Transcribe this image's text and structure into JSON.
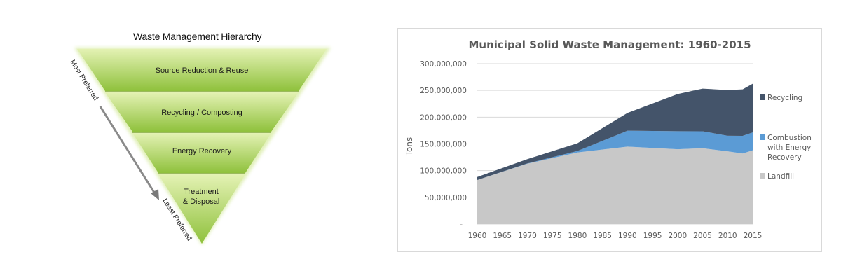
{
  "hierarchy": {
    "title": "Waste Management Hierarchy",
    "tiers": [
      "Source Reduction & Reuse",
      "Recycling / Composting",
      "Energy Recovery",
      "Treatment",
      "& Disposal"
    ],
    "most_preferred": "Most Preferred",
    "least_preferred": "Least Preferred",
    "colors": {
      "light": "#e4f2b4",
      "dark": "#8fc13c",
      "arrow": "#8a8a8a"
    }
  },
  "chart_data": {
    "type": "area",
    "stacked": true,
    "title": "Municipal Solid Waste Management: 1960-2015",
    "xlabel": "",
    "ylabel": "Tons",
    "x": [
      1960,
      1970,
      1980,
      1990,
      2000,
      2005,
      2010,
      2013,
      2015
    ],
    "xticks": [
      "1960",
      "1965",
      "1970",
      "1975",
      "1980",
      "1985",
      "1990",
      "1995",
      "2000",
      "2005",
      "2010",
      "2015"
    ],
    "yticks": [
      "-",
      "50,000,000",
      "100,000,000",
      "150,000,000",
      "200,000,000",
      "250,000,000",
      "300,000,000"
    ],
    "ylim": [
      0,
      300000000
    ],
    "grid": true,
    "legend_position": "right",
    "series": [
      {
        "name": "Landfill",
        "color": "#c8c8c8",
        "values": [
          82500000,
          113000000,
          134000000,
          145000000,
          140000000,
          142000000,
          136000000,
          132000000,
          138000000
        ]
      },
      {
        "name": "Combustion with Energy Recovery",
        "legend_lines": [
          "Combustion",
          "with Energy",
          "Recovery"
        ],
        "color": "#5b9bd5",
        "values": [
          0,
          500000,
          2700000,
          29700000,
          33700000,
          31600000,
          29300000,
          33000000,
          33500000
        ]
      },
      {
        "name": "Recycling",
        "color": "#44546a",
        "values": [
          5600000,
          8000000,
          14500000,
          33200000,
          69500000,
          79800000,
          85400000,
          87000000,
          91000000
        ]
      }
    ]
  }
}
